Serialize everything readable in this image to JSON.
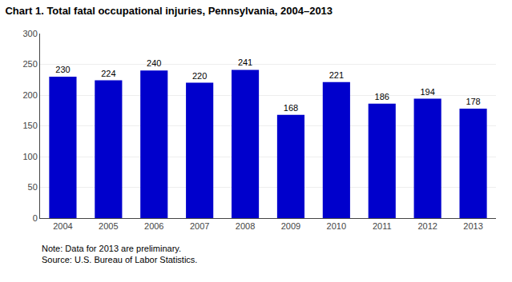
{
  "chart_data": {
    "type": "bar",
    "title": "Chart 1. Total fatal occupational injuries, Pennsylvania, 2004–2013",
    "categories": [
      "2004",
      "2005",
      "2006",
      "2007",
      "2008",
      "2009",
      "2010",
      "2011",
      "2012",
      "2013"
    ],
    "values": [
      230,
      224,
      240,
      220,
      241,
      168,
      221,
      186,
      194,
      178
    ],
    "color": "#0000cc",
    "ylim": [
      0,
      300
    ],
    "yticks": [
      0,
      50,
      100,
      150,
      200,
      250,
      300
    ],
    "grid": true,
    "data_labels": true,
    "annotations": [
      "Note: Data for 2013 are preliminary.",
      "Source: U.S. Bureau of Labor Statistics."
    ]
  }
}
